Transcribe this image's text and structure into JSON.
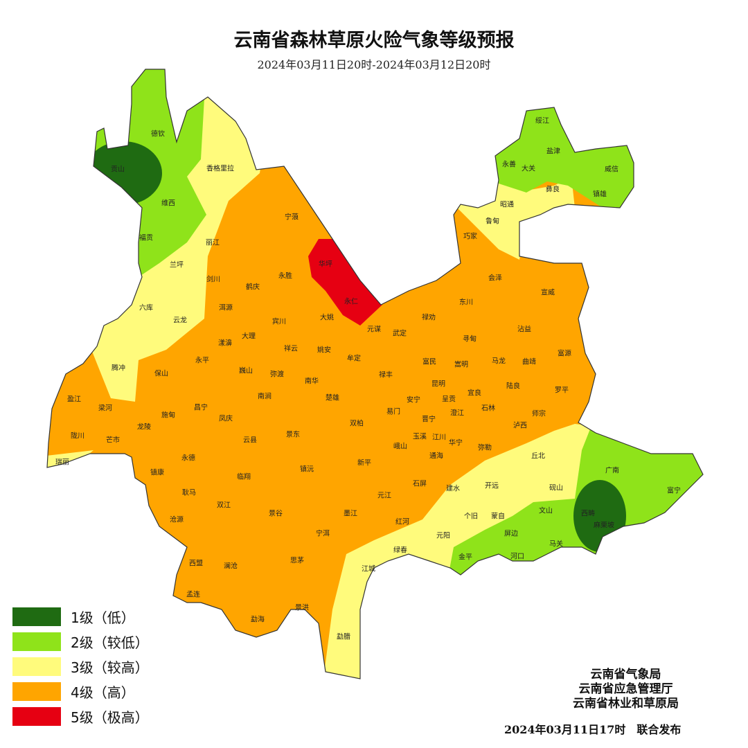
{
  "header": {
    "title": "云南省森林草原火险气象等级预报",
    "subtitle": "2024年03月11日20时-2024年03月12日20时"
  },
  "colors": {
    "level1": "#1f6b12",
    "level2": "#8fe31a",
    "level3": "#fffb7c",
    "level4": "#ffa500",
    "level5": "#e60012"
  },
  "legend": [
    {
      "level": 1,
      "label": "1级（低）"
    },
    {
      "level": 2,
      "label": "2级（较低）"
    },
    {
      "level": 3,
      "label": "3级（较高）"
    },
    {
      "level": 4,
      "label": "4级（高）"
    },
    {
      "level": 5,
      "label": "5级（极高）"
    }
  ],
  "counties": [
    "德钦",
    "贡山",
    "香格里拉",
    "维西",
    "福贡",
    "丽江",
    "兰坪",
    "宁蒗",
    "华坪",
    "永胜",
    "剑川",
    "鹤庆",
    "六库",
    "云龙",
    "洱源",
    "永仁",
    "大姚",
    "宾川",
    "大理",
    "漾濞",
    "祥云",
    "元谋",
    "武定",
    "禄劝",
    "东川",
    "会泽",
    "宣威",
    "巧家",
    "鲁甸",
    "昭通",
    "彝良",
    "永善",
    "大关",
    "盐津",
    "绥江",
    "威信",
    "镇雄",
    "寻甸",
    "沾益",
    "腾冲",
    "保山",
    "永平",
    "巍山",
    "弥渡",
    "姚安",
    "牟定",
    "南华",
    "禄丰",
    "富民",
    "嵩明",
    "马龙",
    "曲靖",
    "富源",
    "昆明",
    "陆良",
    "罗平",
    "宜良",
    "安宁",
    "呈贡",
    "易门",
    "晋宁",
    "澄江",
    "石林",
    "师宗",
    "泸西",
    "玉溪",
    "江川",
    "华宁",
    "峨山",
    "通海",
    "弥勒",
    "丘北",
    "盈江",
    "梁河",
    "施甸",
    "昌宁",
    "楚雄",
    "南涧",
    "双柏",
    "凤庆",
    "陇川",
    "芒市",
    "龙陵",
    "云县",
    "景东",
    "瑞丽",
    "永德",
    "新平",
    "镇沅",
    "临翔",
    "镇康",
    "耿马",
    "双江",
    "沧源",
    "景谷",
    "墨江",
    "元江",
    "石屏",
    "建水",
    "开远",
    "砚山",
    "广南",
    "富宁",
    "个旧",
    "蒙自",
    "文山",
    "西畴",
    "麻栗坡",
    "红河",
    "宁洱",
    "元阳",
    "屏边",
    "马关",
    "绿春",
    "金平",
    "河口",
    "思茅",
    "江城",
    "西盟",
    "澜沧",
    "孟连",
    "景洪",
    "勐海",
    "勐腊"
  ],
  "footer": {
    "agencies": [
      "云南省气象局",
      "云南省应急管理厅",
      "云南省林业和草原局"
    ],
    "issued": "2024年03月11日17时　联合发布"
  }
}
